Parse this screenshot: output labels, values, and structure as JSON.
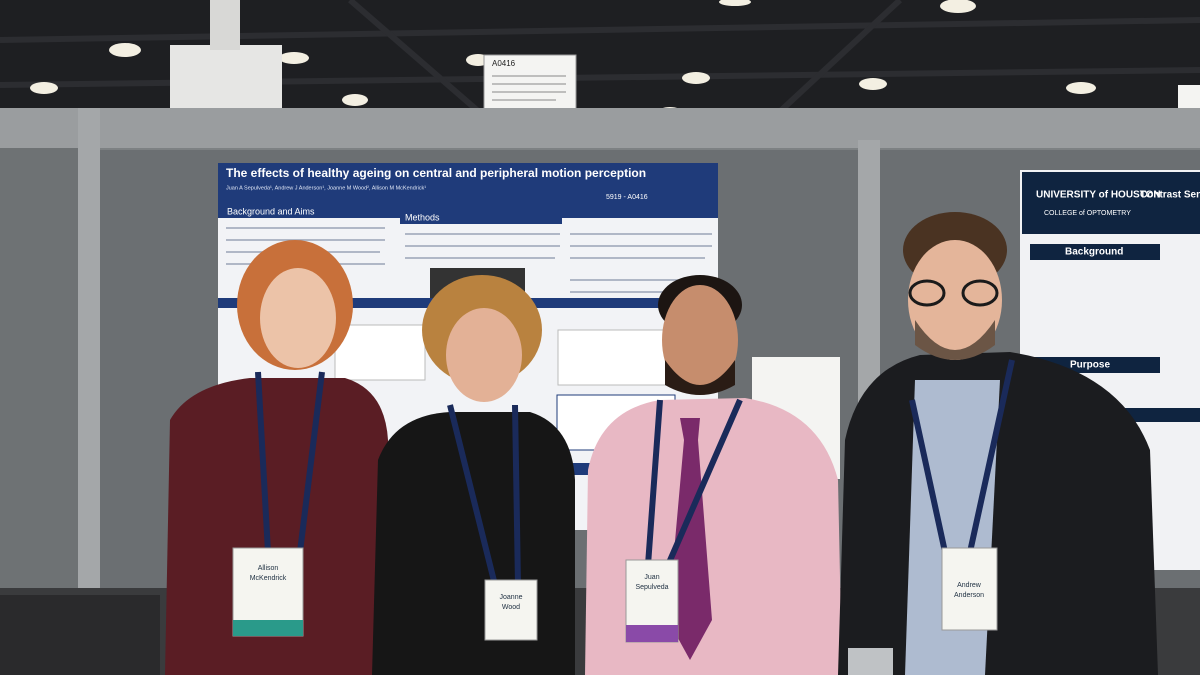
{
  "board_sign": "A0416",
  "poster": {
    "title": "The effects of healthy ageing on central and peripheral motion perception",
    "authors": "Juan A Sepulveda¹, Andrew J Anderson¹, Joanne M Wood², Allison M McKendrick¹",
    "code": "5919 - A0416",
    "sections": [
      "Background and Aims",
      "Methods"
    ]
  },
  "right_poster": {
    "university": "UNIVERSITY of HOUSTON",
    "college": "COLLEGE of OPTOMETRY",
    "title": "Contrast Sen",
    "sections": [
      "Background",
      "Purpose"
    ]
  },
  "badges": [
    {
      "first": "Allison",
      "last": "McKendrick"
    },
    {
      "first": "Joanne",
      "last": "Wood"
    },
    {
      "first": "Juan",
      "last": "Sepulveda"
    },
    {
      "first": "Andrew",
      "last": "Anderson"
    }
  ]
}
